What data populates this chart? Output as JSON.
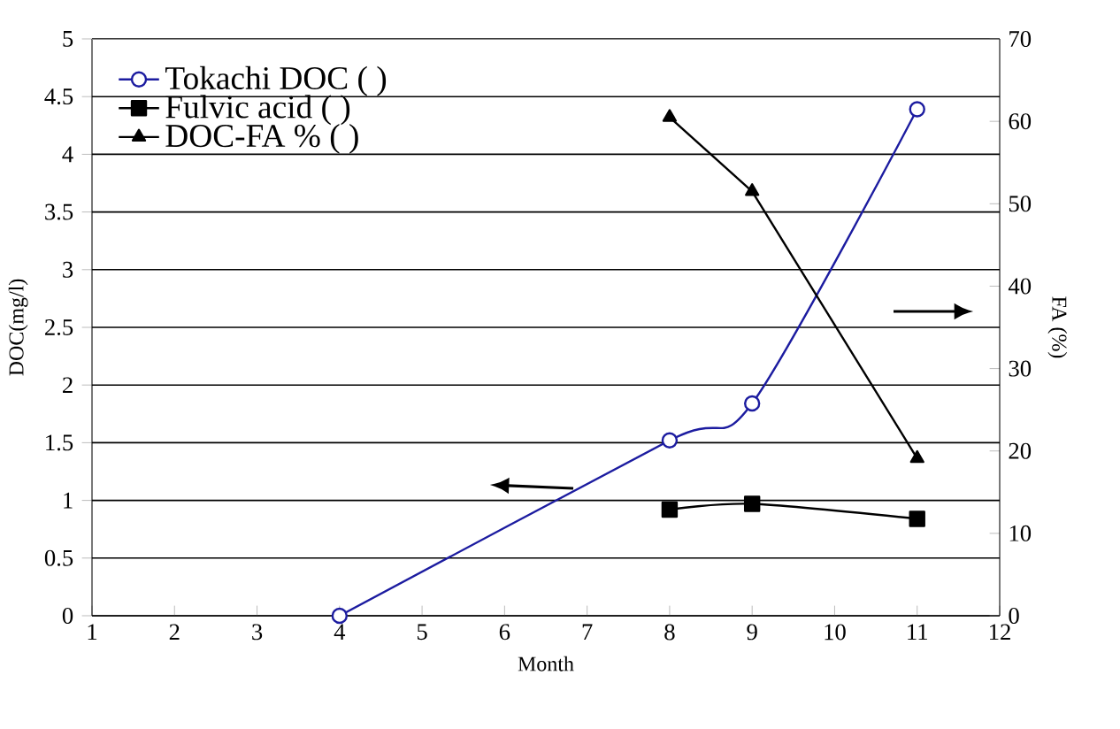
{
  "chart_data": {
    "type": "line",
    "xlabel": "Month",
    "ylabel": "DOC(mg/l)",
    "y2label": "FA (%)",
    "xlim": [
      1,
      12
    ],
    "xticks": [
      1,
      2,
      3,
      4,
      5,
      6,
      7,
      8,
      9,
      10,
      11,
      12
    ],
    "ylim": [
      0,
      5
    ],
    "yticks": [
      0,
      0.5,
      1,
      1.5,
      2,
      2.5,
      3,
      3.5,
      4,
      4.5,
      5
    ],
    "y2lim": [
      0,
      70
    ],
    "y2ticks": [
      0,
      10,
      20,
      30,
      40,
      50,
      60,
      70
    ],
    "grid": "y",
    "legend": "top left",
    "series": [
      {
        "name": "Tokachi DOC (      )",
        "color": "#1c1ca0",
        "marker": "circle",
        "x": [
          4,
          8,
          9,
          11
        ],
        "values": [
          0,
          1.52,
          1.84,
          4.39
        ]
      },
      {
        "name": "Fulvic acid (      )",
        "color": "#000000",
        "marker": "square",
        "x": [
          8,
          9,
          11
        ],
        "values": [
          0.92,
          0.97,
          0.84
        ]
      },
      {
        "name": "DOC-FA % (      )",
        "color": "#000000",
        "marker": "triangle",
        "axis": "y2",
        "x": [
          8,
          9,
          11
        ],
        "values": [
          60.5,
          51.5,
          19.1
        ]
      }
    ]
  }
}
